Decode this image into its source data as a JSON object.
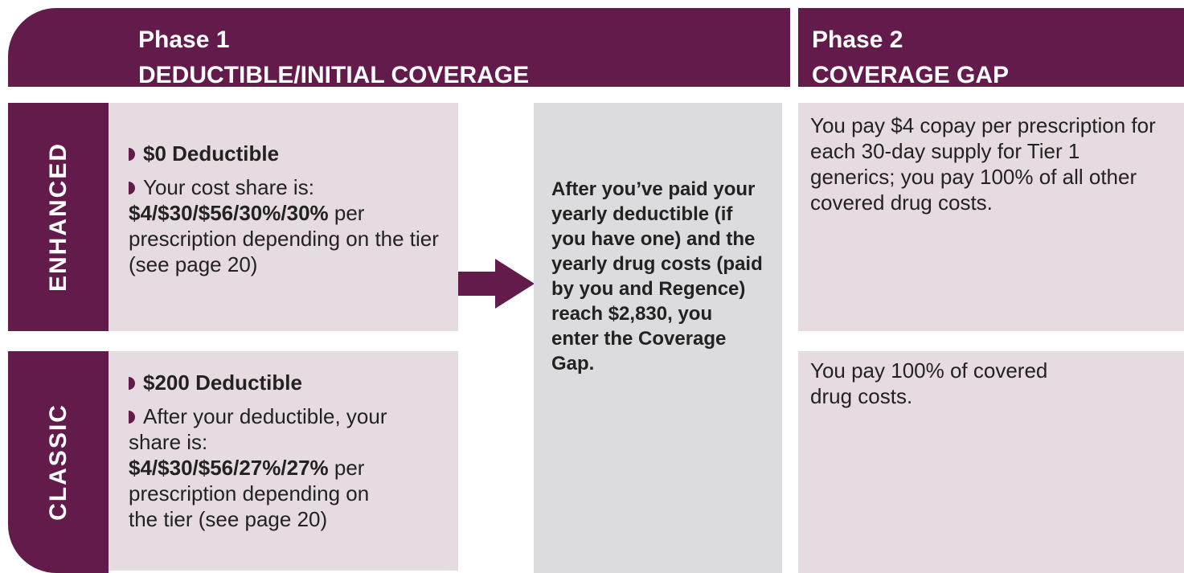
{
  "header": {
    "phase1_title": "Phase 1",
    "phase1_subtitle": "DEDUCTIBLE/INITIAL COVERAGE",
    "phase2_title": "Phase 2",
    "phase2_subtitle": "COVERAGE GAP"
  },
  "rows": [
    {
      "label": "ENHANCED",
      "deductible": "$0 Deductible",
      "share_intro": "Your cost share is:",
      "share_values": "$4/$30/$56/30%/30%",
      "share_rest": " per prescription depending on the tier (see page 20)",
      "gap": "You pay $4 copay per prescription for each 30-day supply for Tier 1 generics; you pay 100% of all other covered drug costs."
    },
    {
      "label": "CLASSIC",
      "deductible": "$200 Deductible",
      "share_intro": "After your deductible, your share is:",
      "share_values": "$4/$30/$56/27%/27%",
      "share_rest": " per prescription depending on the tier (see page 20)",
      "gap": "You pay 100% of covered drug costs."
    }
  ],
  "transition": "After you’ve paid your yearly deductible (if you have one) and the yearly drug costs (paid by you and Regence) reach $2,830, you enter the Coverage Gap."
}
